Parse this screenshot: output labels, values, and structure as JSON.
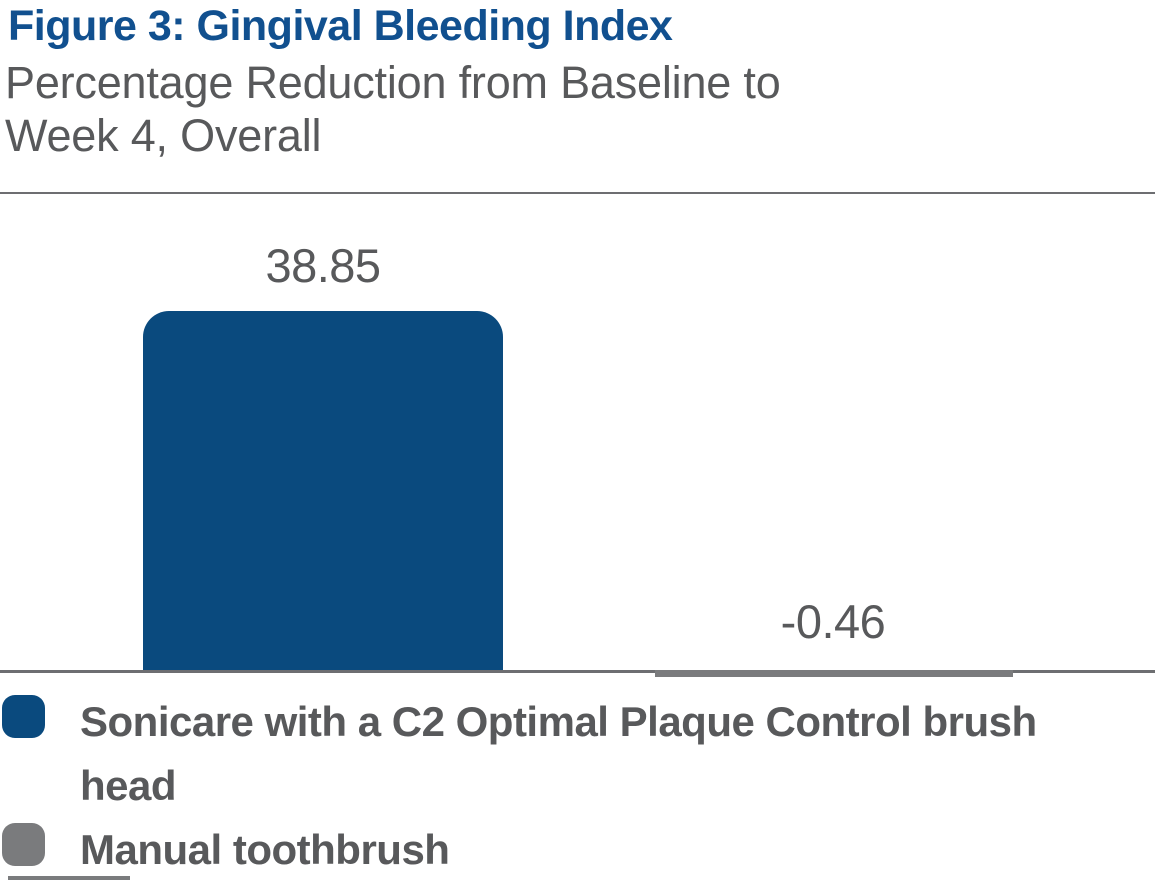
{
  "header": {
    "title": "Figure 3: Gingival Bleeding Index",
    "subtitle_lines": [
      "Percentage Reduction from Baseline to",
      "Week 4, Overall"
    ]
  },
  "chart_data": {
    "type": "bar",
    "title": "Figure 3: Gingival Bleeding Index",
    "subtitle": "Percentage Reduction from Baseline to Week 4, Overall",
    "categories": [
      "Sonicare with a C2 Optimal Plaque Control brush head",
      "Manual toothbrush"
    ],
    "values": [
      38.85,
      -0.46
    ],
    "value_labels": [
      "38.85",
      "-0.46"
    ],
    "ylabel": "Percentage reduction from baseline to Week 4",
    "xlabel": "",
    "ylim": [
      -5,
      45
    ],
    "grid": false,
    "axis_style": "baseline only, no ticks or tick labels",
    "legend_position": "bottom-left",
    "bar_colors": [
      "#0A4A7E",
      "#7A7B7D"
    ]
  },
  "legend": {
    "items": [
      {
        "label": "Sonicare with a C2 Optimal Plaque Control brush head",
        "color": "#0A4A7E"
      },
      {
        "label": "Manual toothbrush",
        "color": "#7A7B7D"
      }
    ]
  },
  "colors": {
    "title_blue": "#11508F",
    "bar_blue": "#0A4A7E",
    "bar_gray": "#7A7B7D",
    "text_gray": "#58595B",
    "line_gray": "#6D6E71",
    "background": "#FFFFFF"
  }
}
